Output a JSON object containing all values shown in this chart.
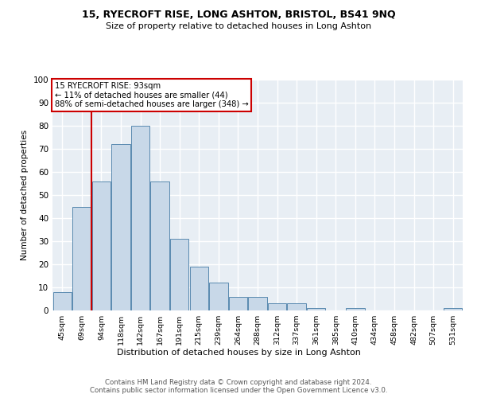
{
  "title": "15, RYECROFT RISE, LONG ASHTON, BRISTOL, BS41 9NQ",
  "subtitle": "Size of property relative to detached houses in Long Ashton",
  "xlabel": "Distribution of detached houses by size in Long Ashton",
  "ylabel": "Number of detached properties",
  "footer_line1": "Contains HM Land Registry data © Crown copyright and database right 2024.",
  "footer_line2": "Contains public sector information licensed under the Open Government Licence v3.0.",
  "bar_labels": [
    "45sqm",
    "69sqm",
    "94sqm",
    "118sqm",
    "142sqm",
    "167sqm",
    "191sqm",
    "215sqm",
    "239sqm",
    "264sqm",
    "288sqm",
    "312sqm",
    "337sqm",
    "361sqm",
    "385sqm",
    "410sqm",
    "434sqm",
    "458sqm",
    "482sqm",
    "507sqm",
    "531sqm"
  ],
  "bar_values": [
    8,
    45,
    56,
    72,
    80,
    56,
    31,
    19,
    12,
    6,
    6,
    3,
    3,
    1,
    0,
    1,
    0,
    0,
    0,
    0,
    1
  ],
  "bar_color": "#c8d8e8",
  "bar_edge_color": "#5a8ab0",
  "background_color": "#e8eef4",
  "grid_color": "#ffffff",
  "annotation_text": "15 RYECROFT RISE: 93sqm\n← 11% of detached houses are smaller (44)\n88% of semi-detached houses are larger (348) →",
  "vline_x": 2,
  "vline_color": "#cc0000",
  "box_color": "#cc0000",
  "ylim": [
    0,
    100
  ],
  "yticks": [
    0,
    10,
    20,
    30,
    40,
    50,
    60,
    70,
    80,
    90,
    100
  ]
}
